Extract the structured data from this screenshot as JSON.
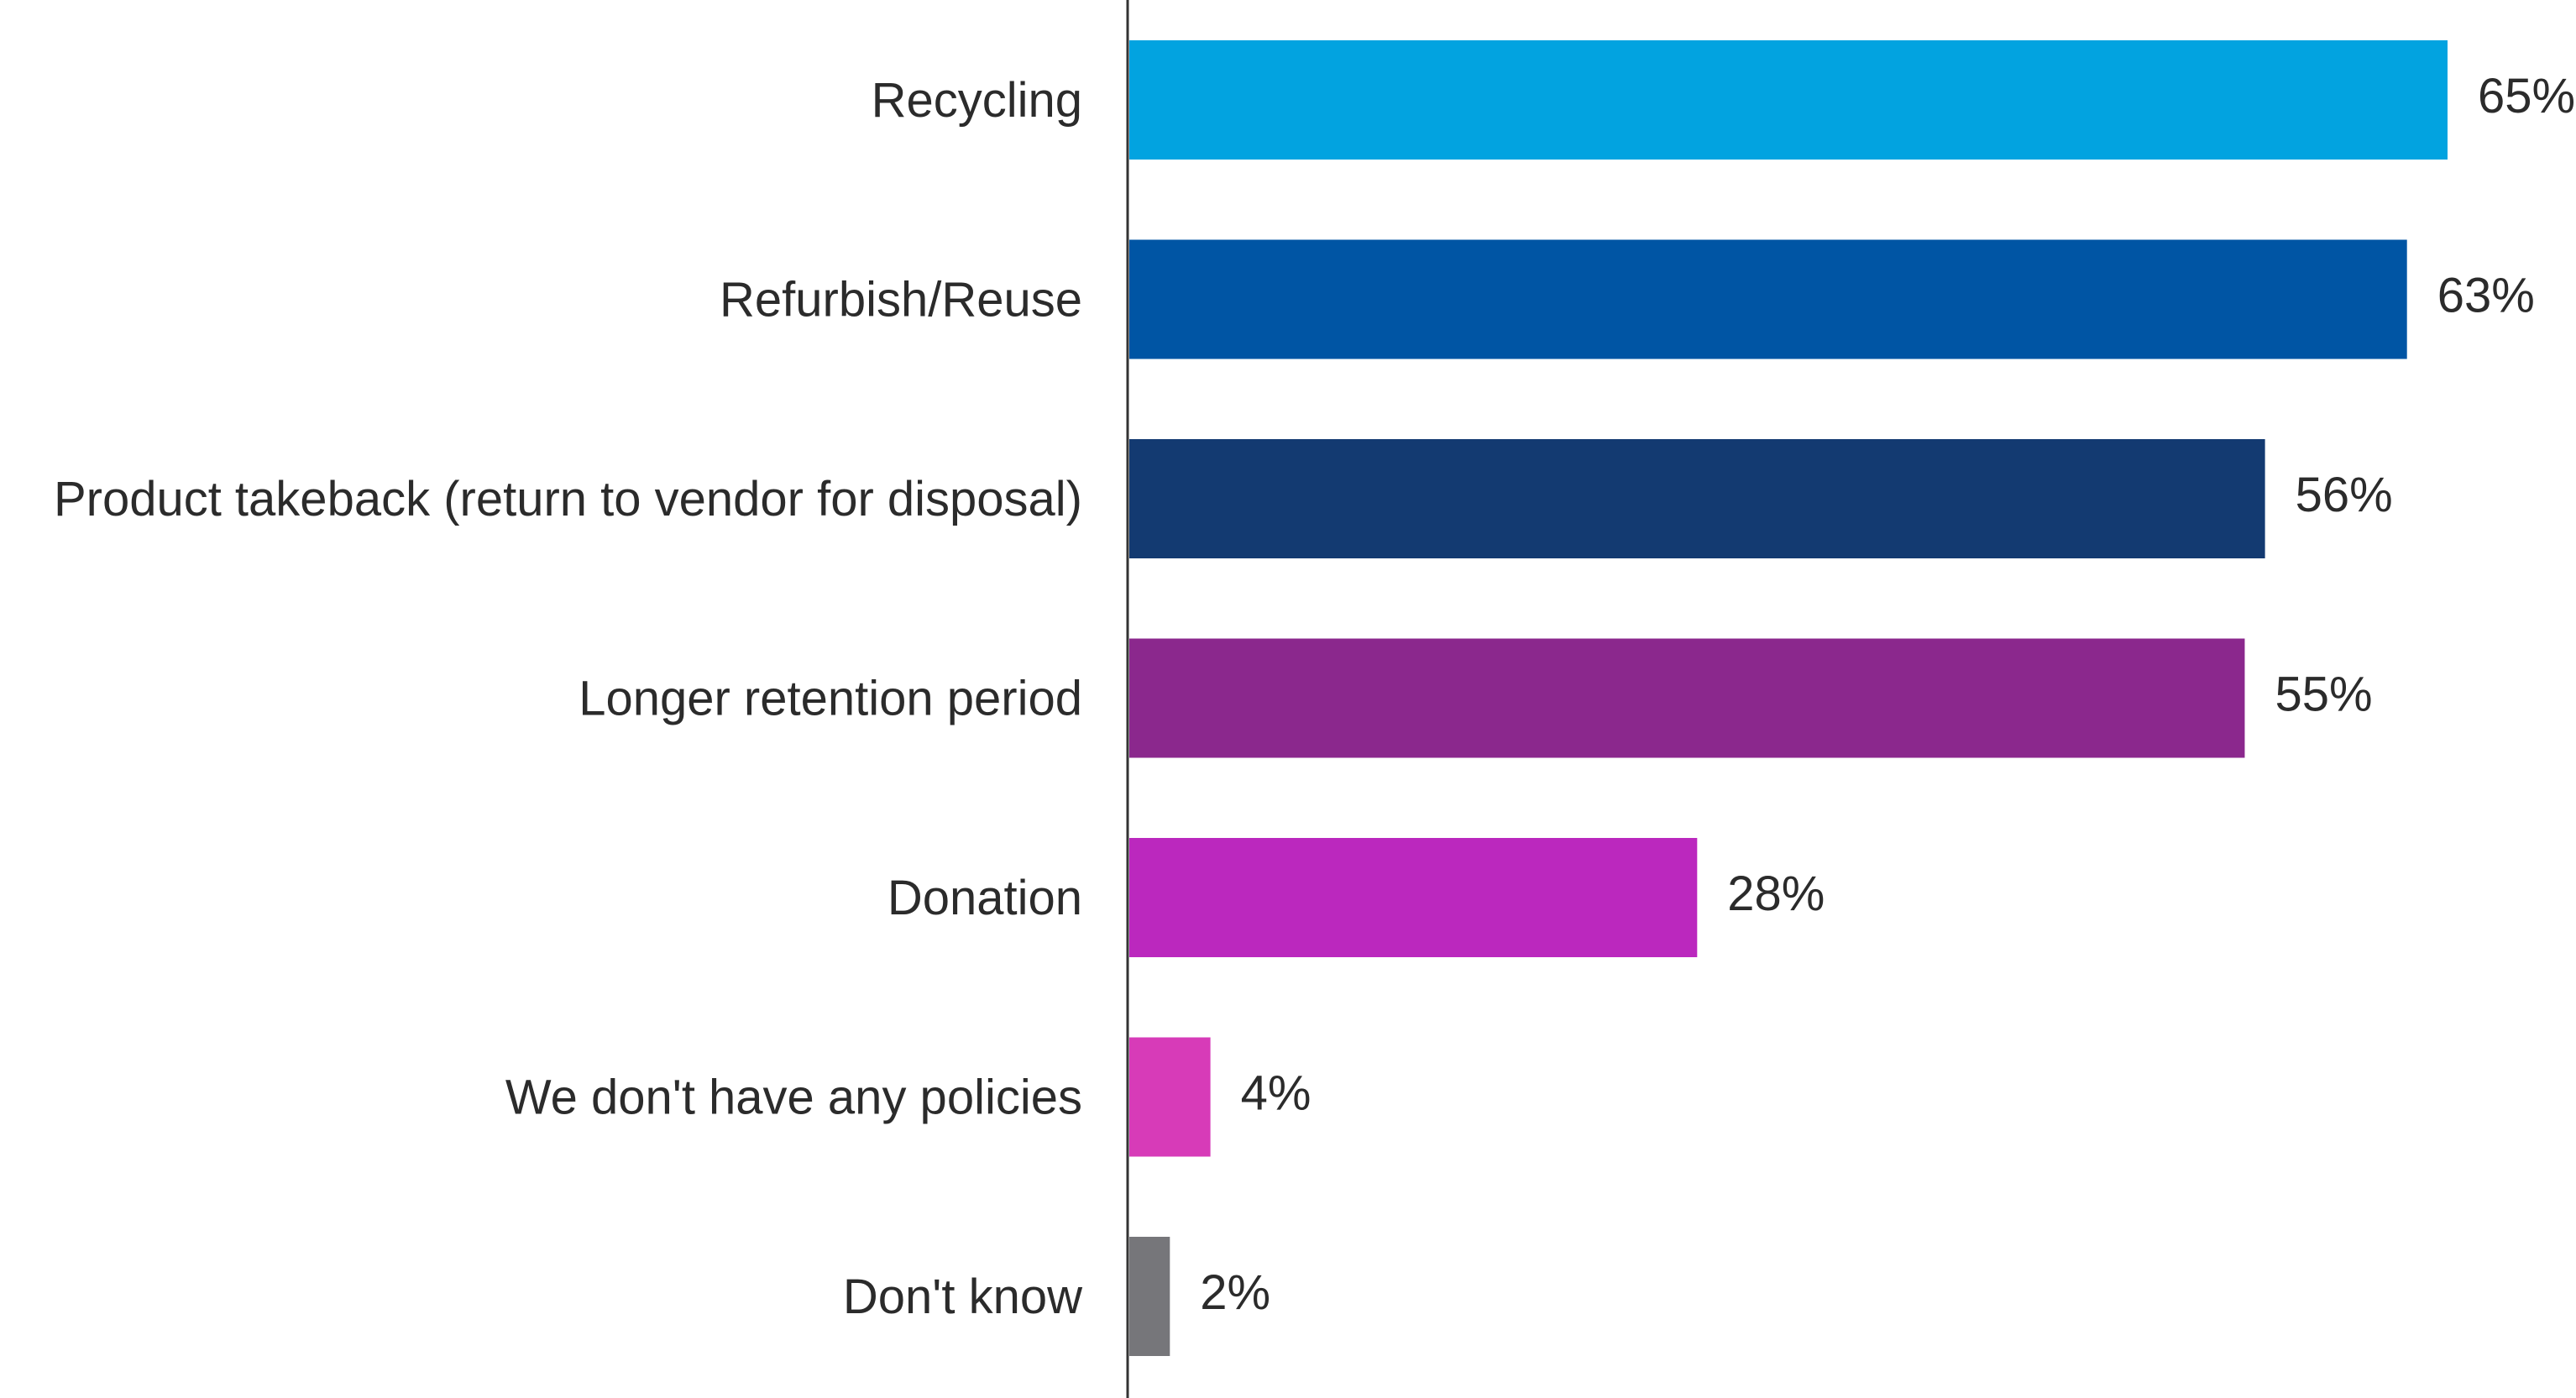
{
  "chart_data": {
    "type": "bar",
    "orientation": "horizontal",
    "categories": [
      "Recycling",
      "Refurbish/Reuse",
      "Product takeback (return to vendor for disposal)",
      "Longer retention period",
      "Donation",
      "We don't have any policies",
      "Don't know"
    ],
    "values": [
      65,
      63,
      56,
      55,
      28,
      4,
      2
    ],
    "value_labels": [
      "65%",
      "63%",
      "56%",
      "55%",
      "28%",
      "4%",
      "2%"
    ],
    "colors": [
      "#02A3E0",
      "#0055A4",
      "#133A71",
      "#8B288D",
      "#BB28BE",
      "#D73BB8",
      "#76767A"
    ],
    "xlim": [
      0,
      65
    ],
    "grid": false,
    "legend": "none"
  }
}
